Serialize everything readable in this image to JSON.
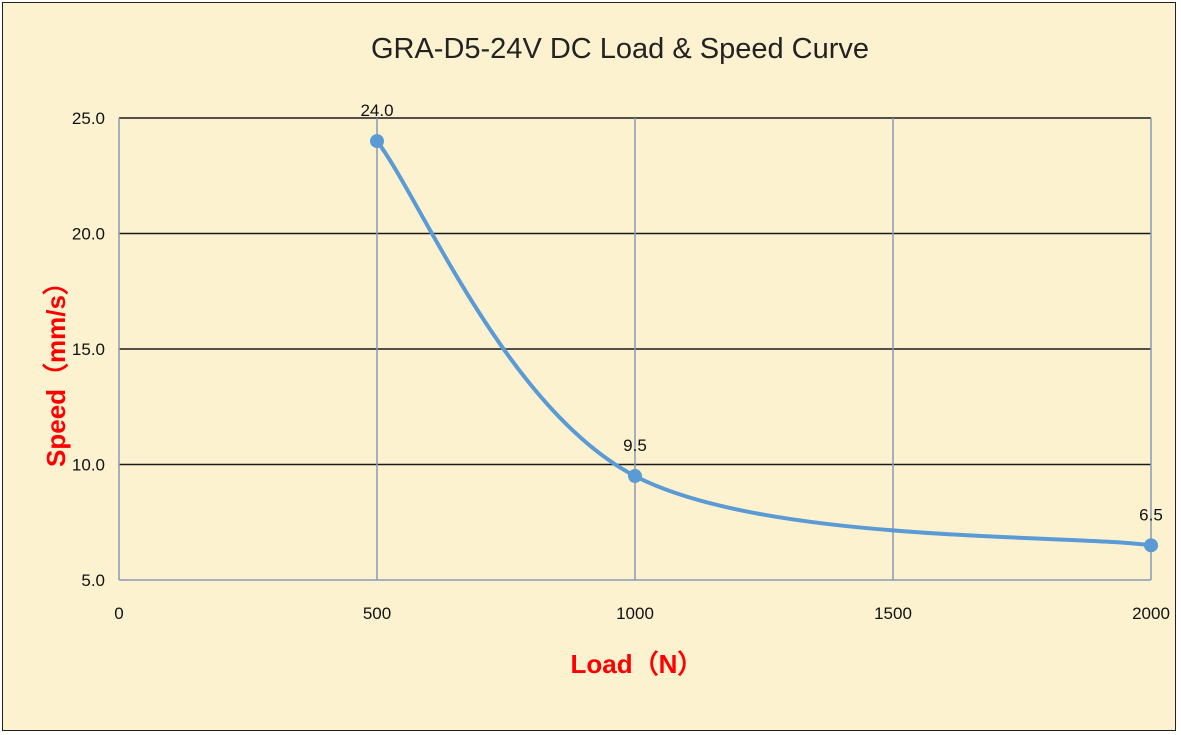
{
  "chart_data": {
    "type": "line",
    "title": "GRA-D5-24V DC Load & Speed Curve",
    "xlabel": "Load（N）",
    "ylabel": "Speed（mm/s）",
    "xlim": [
      0,
      2000
    ],
    "ylim": [
      5,
      25
    ],
    "x_ticks": [
      0,
      500,
      1000,
      1500,
      2000
    ],
    "x_tick_labels": [
      "0",
      "500",
      "1000",
      "1500",
      "2000"
    ],
    "y_ticks": [
      5,
      10,
      15,
      20,
      25
    ],
    "y_tick_labels": [
      "5.0",
      "10.0",
      "15.0",
      "20.0",
      "25.0"
    ],
    "grid": true,
    "smooth": true,
    "colors": {
      "background": "#fdf2d0",
      "series": "#5b9bd5",
      "axis_title": "#ff0000"
    },
    "series": [
      {
        "x": [
          500,
          1000,
          2000
        ],
        "y": [
          24.0,
          9.5,
          6.5
        ]
      }
    ],
    "data_labels": [
      "24.0",
      "9.5",
      "6.5"
    ]
  }
}
